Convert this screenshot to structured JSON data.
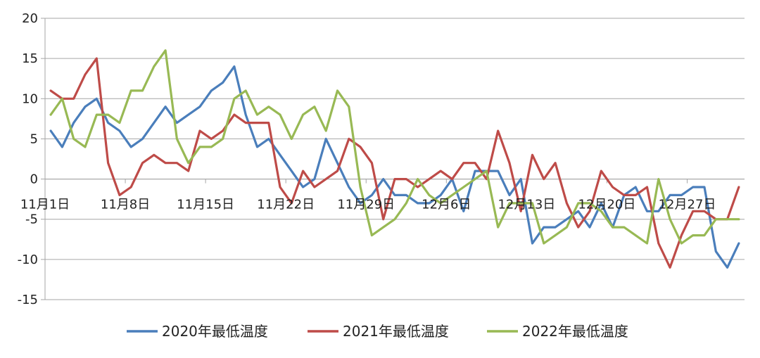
{
  "chart_data": {
    "type": "line",
    "title": "",
    "xlabel": "",
    "ylabel": "",
    "ylim": [
      -15,
      20
    ],
    "y_ticks": [
      20,
      15,
      10,
      5,
      0,
      -5,
      -10,
      -15
    ],
    "grid": "horizontal",
    "legend_position": "bottom",
    "x_tick_labels": [
      {
        "index": 0,
        "label": "11月1日"
      },
      {
        "index": 7,
        "label": "11月8日"
      },
      {
        "index": 14,
        "label": "11月15日"
      },
      {
        "index": 21,
        "label": "11月22日"
      },
      {
        "index": 28,
        "label": "11月29日"
      },
      {
        "index": 35,
        "label": "12月6日"
      },
      {
        "index": 42,
        "label": "12月13日"
      },
      {
        "index": 49,
        "label": "12月20日"
      },
      {
        "index": 56,
        "label": "12月27日"
      }
    ],
    "series": [
      {
        "name": "2020年最低温度",
        "color": "#4a7ebb",
        "values": [
          6,
          4,
          7,
          9,
          10,
          7,
          6,
          4,
          5,
          7,
          9,
          7,
          8,
          9,
          11,
          12,
          14,
          8,
          4,
          5,
          3,
          1,
          -1,
          0,
          5,
          2,
          -1,
          -3,
          -2,
          0,
          -2,
          -2,
          -3,
          -3,
          -2,
          0,
          -4,
          1,
          1,
          1,
          -2,
          0,
          -8,
          -6,
          -6,
          -5,
          -4,
          -6,
          -3,
          -6,
          -2,
          -1,
          -4,
          -4,
          -2,
          -2,
          -1,
          -1,
          -9,
          -11,
          -8
        ]
      },
      {
        "name": "2021年最低温度",
        "color": "#be4b48",
        "values": [
          11,
          10,
          10,
          13,
          15,
          2,
          -2,
          -1,
          2,
          3,
          2,
          2,
          1,
          6,
          5,
          6,
          8,
          7,
          7,
          7,
          -1,
          -3,
          1,
          -1,
          0,
          1,
          5,
          4,
          2,
          -5,
          0,
          0,
          -1,
          0,
          1,
          0,
          2,
          2,
          0,
          6,
          2,
          -4,
          3,
          0,
          2,
          -3,
          -6,
          -4,
          1,
          -1,
          -2,
          -2,
          -1,
          -8,
          -11,
          -7,
          -4,
          -4,
          -5,
          -5,
          -1
        ]
      },
      {
        "name": "2022年最低温度",
        "color": "#98b954",
        "values": [
          8,
          10,
          5,
          4,
          8,
          8,
          7,
          11,
          11,
          14,
          16,
          5,
          2,
          4,
          4,
          5,
          10,
          11,
          8,
          9,
          8,
          5,
          8,
          9,
          6,
          11,
          9,
          -1,
          -7,
          -6,
          -5,
          -3,
          0,
          -2,
          -3,
          -2,
          -1,
          0,
          1,
          -6,
          -3,
          -3,
          -3,
          -8,
          -7,
          -6,
          -3,
          -3,
          -4,
          -6,
          -6,
          -7,
          -8,
          0,
          -5,
          -8,
          -7,
          -7,
          -5,
          -5,
          -5
        ]
      }
    ]
  }
}
